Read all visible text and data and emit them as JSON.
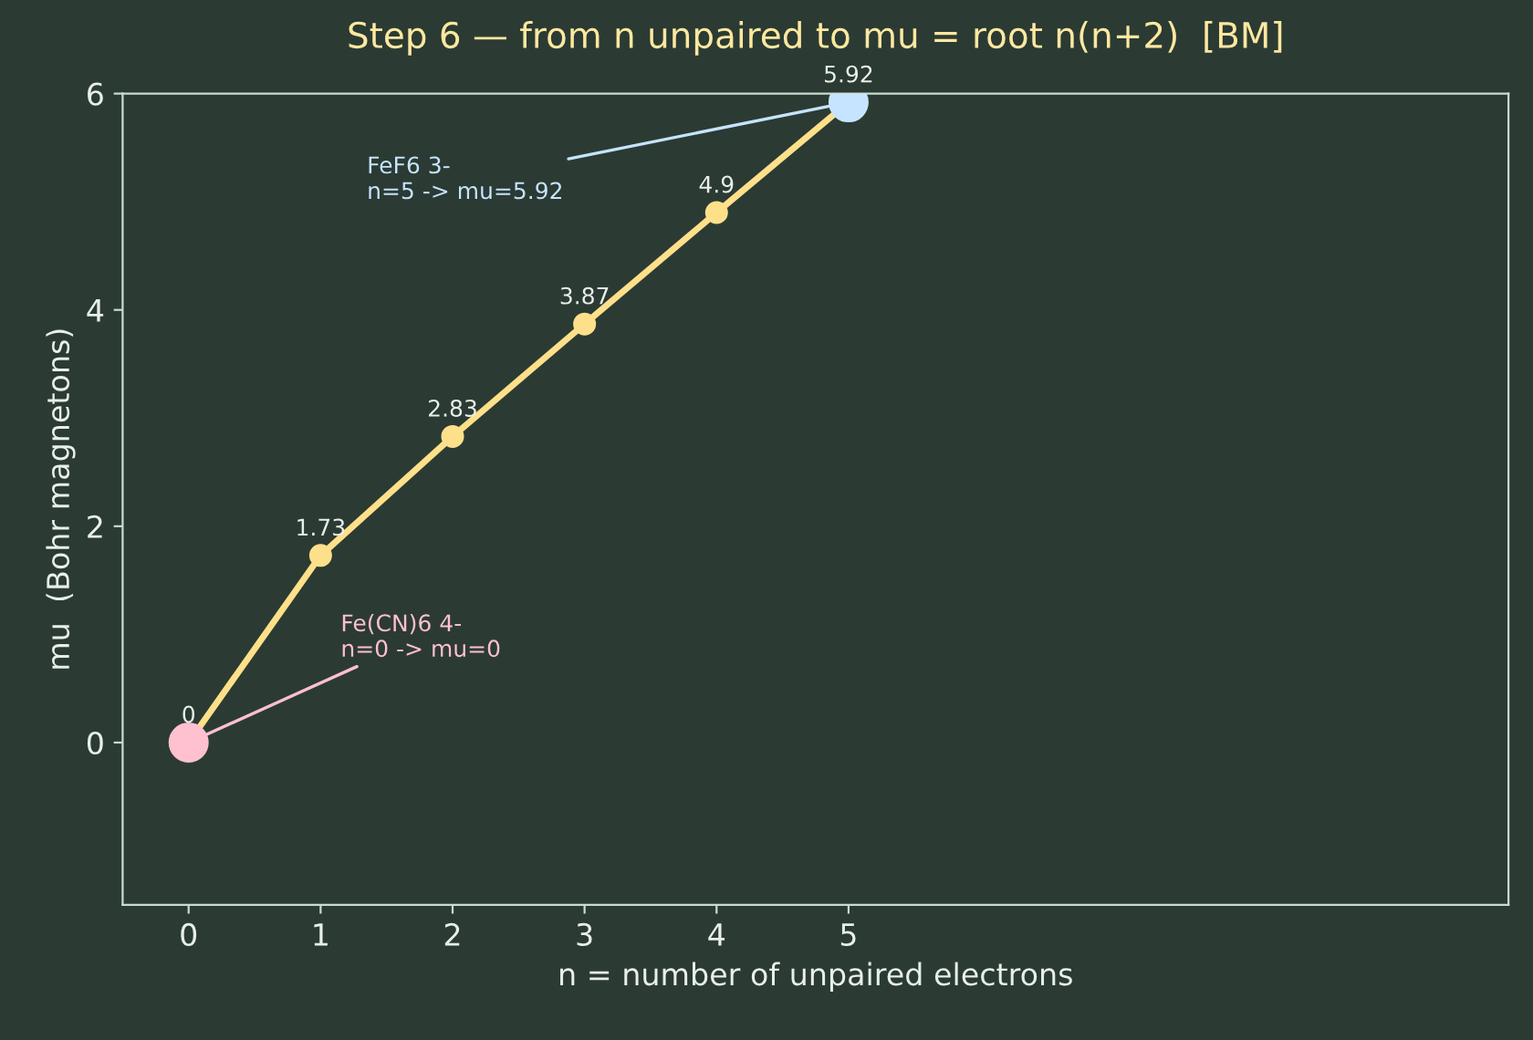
{
  "chart_data": {
    "type": "line",
    "title": "Step 6 — from n unpaired to mu = root n(n+2)  [BM]",
    "xlabel": "n = number of unpaired electrons",
    "ylabel": "mu  (Bohr magnetons)",
    "series": [
      {
        "type": "line",
        "color": "#ffe08a",
        "x": [
          0,
          1,
          2,
          3,
          4,
          5
        ],
        "values": [
          0,
          1.73,
          2.83,
          3.87,
          4.9,
          5.92
        ],
        "marker": "circle",
        "data_labels": true
      },
      {
        "type": "scatter",
        "color": "#ffc0cf",
        "x": [
          0
        ],
        "values": [
          0
        ]
      },
      {
        "type": "scatter",
        "color": "#c6e4ff",
        "x": [
          5
        ],
        "values": [
          5.92
        ]
      }
    ],
    "annotations": [
      {
        "text": "Fe(CN)6 4-\nn=0 -> mu=0",
        "x": 0,
        "y": 0
      },
      {
        "text": "FeF6 3-\nn=5 -> mu=5.92",
        "x": 5,
        "y": 5.92
      }
    ],
    "xlim": [
      -0.5,
      10
    ],
    "xticks": [
      0,
      1,
      2,
      3,
      4,
      5
    ],
    "ylim": [
      -1.5,
      6
    ],
    "yticks": [
      0,
      2,
      4,
      6
    ],
    "grid": false,
    "legend": false,
    "line_style": "solid"
  }
}
